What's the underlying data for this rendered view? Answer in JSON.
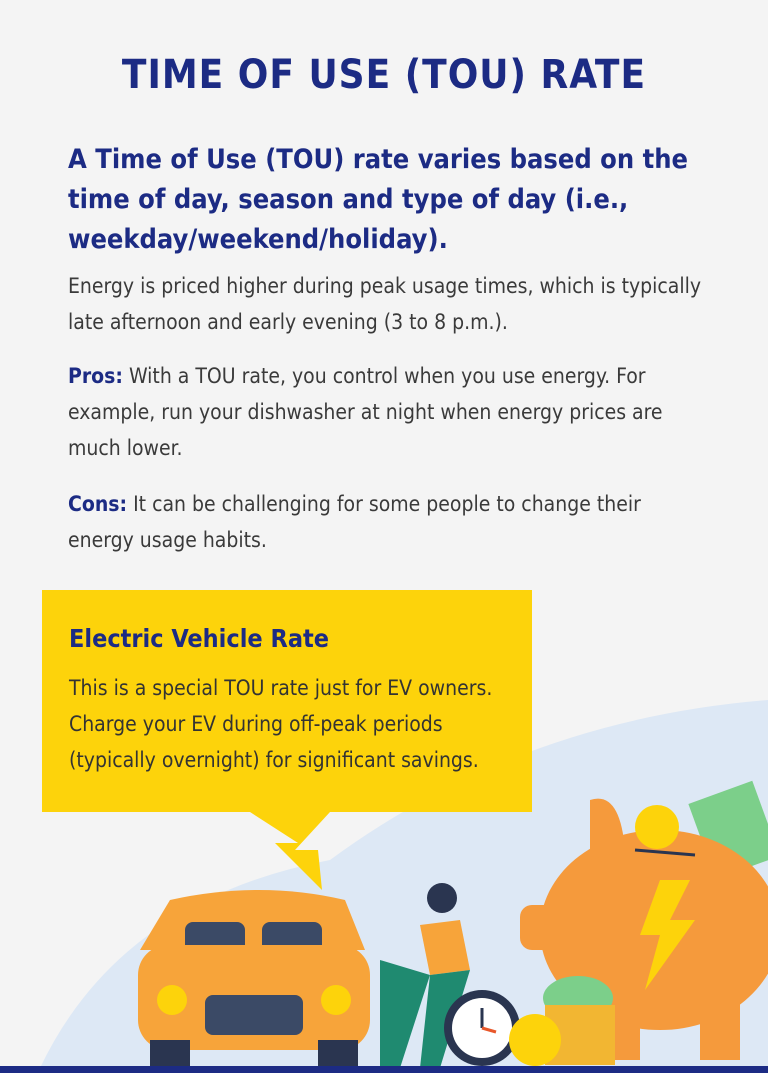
{
  "header": {
    "title": "TIME OF USE (TOU) RATE"
  },
  "intro": {
    "heading": "A Time of Use (TOU) rate varies based on the time of day, season and type of day (i.e., weekday/weekend/holiday).",
    "text": "Energy is priced higher during peak usage times, which is typically late afternoon and early evening (3 to 8 p.m.)."
  },
  "pros": {
    "label": "Pros:",
    "text": "With a TOU rate, you control when you use energy. For example, run your dishwasher at night when energy prices are much lower."
  },
  "cons": {
    "label": "Cons:",
    "text": "It can be challenging for some people to change their energy usage habits."
  },
  "callout": {
    "title": "Electric Vehicle Rate",
    "text": "This is a special TOU rate just for EV owners. Charge your EV during off-peak periods (typically overnight) for significant savings."
  }
}
